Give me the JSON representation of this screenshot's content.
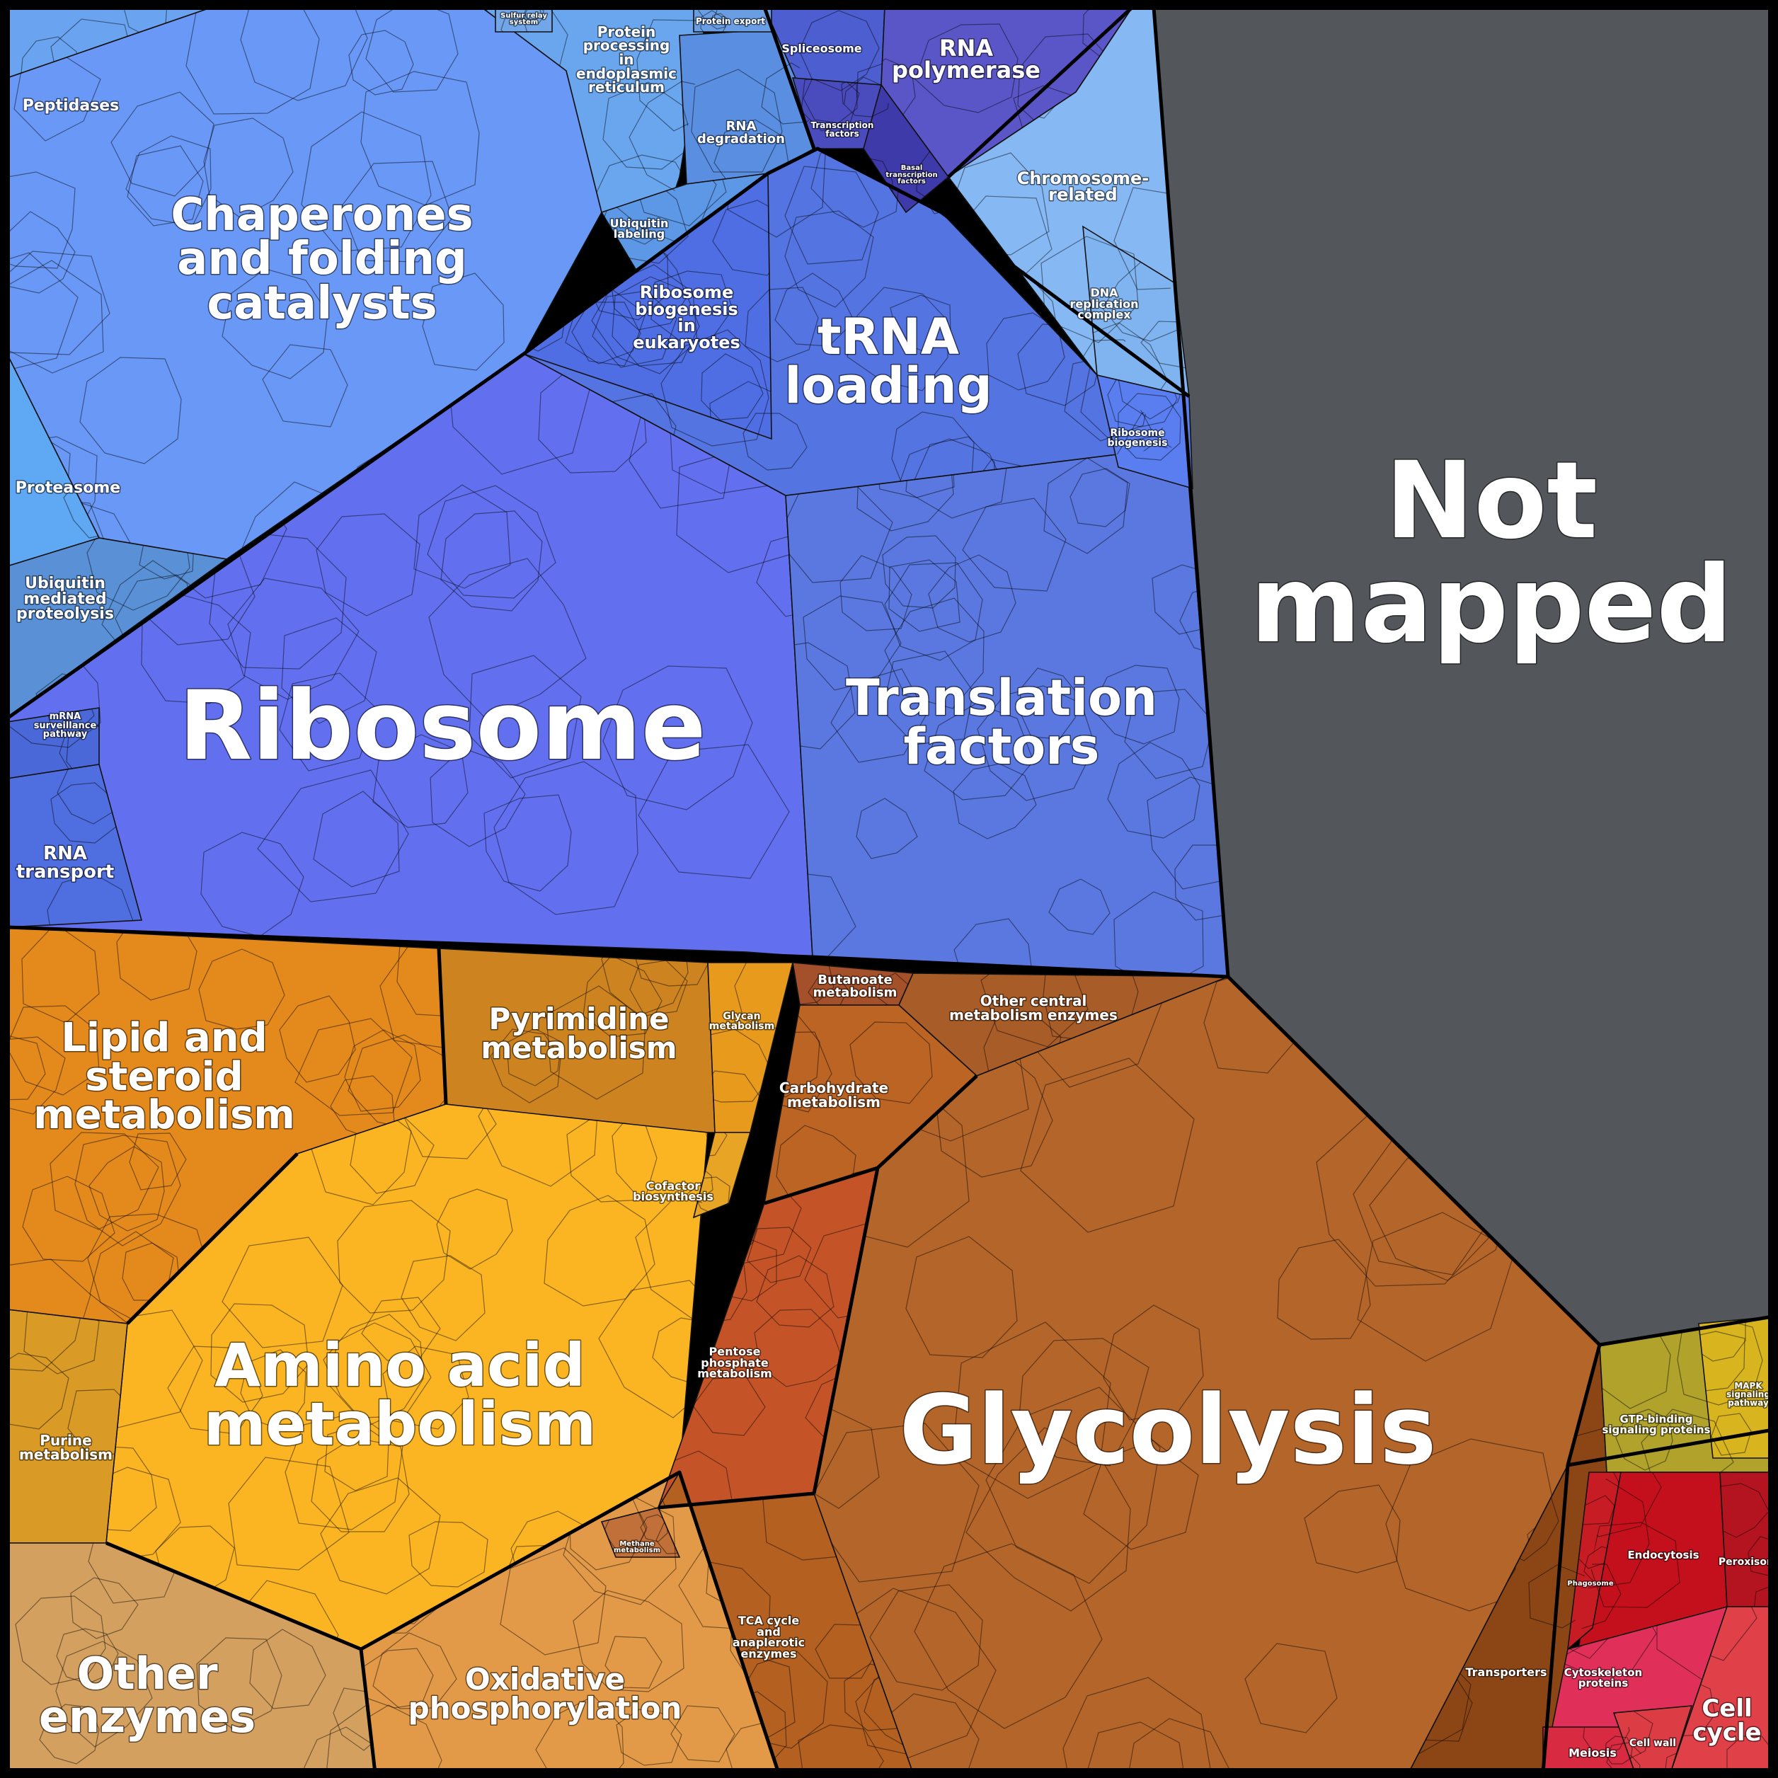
{
  "voronoi_treemap": {
    "categories": [
      {
        "id": "ribosome",
        "label": "Ribosome",
        "color": "#6270f0"
      },
      {
        "id": "translation",
        "label": "Translation factors",
        "color": "#5a78e0"
      },
      {
        "id": "trna",
        "label": "tRNA loading",
        "color": "#5474e2"
      },
      {
        "id": "chaperones",
        "label": "Chaperones and folding catalysts",
        "color": "#6a98f6"
      },
      {
        "id": "peptidases",
        "label": "Peptidases",
        "color": "#6aa4f0"
      },
      {
        "id": "proteasome",
        "label": "Proteasome",
        "color": "#5ea8f4"
      },
      {
        "id": "ubiquitin_prot",
        "label": "Ubiquitin mediated proteolysis",
        "color": "#5a90d6"
      },
      {
        "id": "mrna_surv",
        "label": "mRNA surveillance pathway",
        "color": "#4a68d8"
      },
      {
        "id": "rna_transport",
        "label": "RNA transport",
        "color": "#4f6ee0"
      },
      {
        "id": "protein_er",
        "label": "Protein processing in endoplasmic reticulum",
        "color": "#6aa6ee"
      },
      {
        "id": "rna_degr",
        "label": "RNA degradation",
        "color": "#5a8ee0"
      },
      {
        "id": "ubiquitin_lab",
        "label": "Ubiquitin labeling",
        "color": "#5c98e6"
      },
      {
        "id": "ribo_biog_euk",
        "label": "Ribosome biogenesis in eukaryotes",
        "color": "#4f6ee4"
      },
      {
        "id": "spliceosome",
        "label": "Spliceosome",
        "color": "#4d5ed0"
      },
      {
        "id": "rna_pol",
        "label": "RNA polymerase",
        "color": "#5a56c8"
      },
      {
        "id": "tf",
        "label": "Transcription factors",
        "color": "#4a4cbe"
      },
      {
        "id": "basal_tf",
        "label": "Basal transcription factors",
        "color": "#3e3aaa"
      },
      {
        "id": "chromo",
        "label": "Chromosome-related",
        "color": "#86b8f4"
      },
      {
        "id": "dna_rep",
        "label": "DNA replication complex",
        "color": "#80b4f0"
      },
      {
        "id": "ribo_biog",
        "label": "Ribosome biogenesis",
        "color": "#5a7ef0"
      },
      {
        "id": "sulfur",
        "label": "Sulfur relay system",
        "color": "#72a6e8"
      },
      {
        "id": "protein_export",
        "label": "Protein export",
        "color": "#6a9ee4"
      },
      {
        "id": "not_mapped",
        "label": "Not mapped",
        "color": "#53575b"
      },
      {
        "id": "glycolysis",
        "label": "Glycolysis",
        "color": "#b3652a"
      },
      {
        "id": "lipid",
        "label": "Lipid and steroid metabolism",
        "color": "#e48a1c"
      },
      {
        "id": "pyrimidine",
        "label": "Pyrimidine metabolism",
        "color": "#cd8420"
      },
      {
        "id": "amino",
        "label": "Amino acid metabolism",
        "color": "#fbb422"
      },
      {
        "id": "purine",
        "label": "Purine metabolism",
        "color": "#d99a26"
      },
      {
        "id": "other_enz",
        "label": "Other enzymes",
        "color": "#d4a060"
      },
      {
        "id": "oxphos",
        "label": "Oxidative phosphorylation",
        "color": "#e39a48"
      },
      {
        "id": "glycan",
        "label": "Glycan metabolism",
        "color": "#e89a1c"
      },
      {
        "id": "cofactor",
        "label": "Cofactor biosynthesis",
        "color": "#e8a424"
      },
      {
        "id": "butanoate",
        "label": "Butanoate metabolism",
        "color": "#a4502a"
      },
      {
        "id": "other_central",
        "label": "Other central metabolism enzymes",
        "color": "#a85c28"
      },
      {
        "id": "carbohydrate",
        "label": "Carbohydrate metabolism",
        "color": "#bb6424"
      },
      {
        "id": "pentose",
        "label": "Pentose phosphate metabolism",
        "color": "#c45428"
      },
      {
        "id": "methane",
        "label": "Methane metabolism",
        "color": "#c07038"
      },
      {
        "id": "tca",
        "label": "TCA cycle and anaplerotic enzymes",
        "color": "#b36020"
      },
      {
        "id": "transporters",
        "label": "Transporters",
        "color": "#8c4616"
      },
      {
        "id": "gtp",
        "label": "GTP-binding signaling proteins",
        "color": "#b0a22a"
      },
      {
        "id": "mapk",
        "label": "MAPK signaling pathway",
        "color": "#d8b41e"
      },
      {
        "id": "endocytosis",
        "label": "Endocytosis",
        "color": "#c4101c"
      },
      {
        "id": "peroxisome",
        "label": "Peroxisome",
        "color": "#b41420"
      },
      {
        "id": "phagosome",
        "label": "Phagosome",
        "color": "#c81c24"
      },
      {
        "id": "cytoskeleton",
        "label": "Cytoskeleton proteins",
        "color": "#e0305a"
      },
      {
        "id": "cell_cycle",
        "label": "Cell cycle",
        "color": "#e04048"
      },
      {
        "id": "meiosis",
        "label": "Meiosis",
        "color": "#d82a40"
      },
      {
        "id": "cell_wall",
        "label": "Cell wall",
        "color": "#dc3c44"
      }
    ],
    "labels": {
      "ribosome": [
        "Ribosome"
      ],
      "translation": [
        "Translation",
        "factors"
      ],
      "trna": [
        "tRNA",
        "loading"
      ],
      "chaperones": [
        "Chaperones",
        "and folding",
        "catalysts"
      ],
      "peptidases": [
        "Peptidases"
      ],
      "proteasome": [
        "Proteasome"
      ],
      "ubiquitin_prot": [
        "Ubiquitin",
        "mediated",
        "proteolysis"
      ],
      "mrna_surv": [
        "mRNA",
        "surveillance",
        "pathway"
      ],
      "rna_transport": [
        "RNA",
        "transport"
      ],
      "protein_er": [
        "Protein",
        "processing",
        "in",
        "endoplasmic",
        "reticulum"
      ],
      "rna_degr": [
        "RNA",
        "degradation"
      ],
      "ubiquitin_lab": [
        "Ubiquitin",
        "labeling"
      ],
      "ribo_biog_euk": [
        "Ribosome",
        "biogenesis",
        "in",
        "eukaryotes"
      ],
      "spliceosome": [
        "Spliceosome"
      ],
      "rna_pol": [
        "RNA",
        "polymerase"
      ],
      "tf": [
        "Transcription",
        "factors"
      ],
      "basal_tf": [
        "Basal",
        "transcription",
        "factors"
      ],
      "chromo": [
        "Chromosome-",
        "related"
      ],
      "dna_rep": [
        "DNA",
        "replication",
        "complex"
      ],
      "ribo_biog": [
        "Ribosome",
        "biogenesis"
      ],
      "sulfur": [
        "Sulfur relay",
        "system"
      ],
      "protein_export": [
        "Protein export"
      ],
      "not_mapped": [
        "Not",
        "mapped"
      ],
      "glycolysis": [
        "Glycolysis"
      ],
      "lipid": [
        "Lipid and",
        "steroid",
        "metabolism"
      ],
      "pyrimidine": [
        "Pyrimidine",
        "metabolism"
      ],
      "amino": [
        "Amino acid",
        "metabolism"
      ],
      "purine": [
        "Purine",
        "metabolism"
      ],
      "other_enz": [
        "Other",
        "enzymes"
      ],
      "oxphos": [
        "Oxidative",
        "phosphorylation"
      ],
      "glycan": [
        "Glycan",
        "metabolism"
      ],
      "cofactor": [
        "Cofactor",
        "biosynthesis"
      ],
      "butanoate": [
        "Butanoate",
        "metabolism"
      ],
      "other_central": [
        "Other central",
        "metabolism enzymes"
      ],
      "carbohydrate": [
        "Carbohydrate",
        "metabolism"
      ],
      "pentose": [
        "Pentose",
        "phosphate",
        "metabolism"
      ],
      "methane": [
        "Methane",
        "metabolism"
      ],
      "tca": [
        "TCA cycle",
        "and",
        "anaplerotic",
        "enzymes"
      ],
      "transporters": [
        "Transporters"
      ],
      "gtp": [
        "GTP-binding",
        "signaling proteins"
      ],
      "mapk": [
        "MAPK",
        "signaling",
        "pathway"
      ],
      "endocytosis": [
        "Endocytosis"
      ],
      "peroxisome": [
        "Peroxisome"
      ],
      "phagosome": [
        "Phagosome"
      ],
      "cytoskeleton": [
        "Cytoskeleton",
        "proteins"
      ],
      "cell_cycle": [
        "Cell",
        "cycle"
      ],
      "meiosis": [
        "Meiosis"
      ],
      "cell_wall": [
        "Cell wall"
      ]
    }
  }
}
